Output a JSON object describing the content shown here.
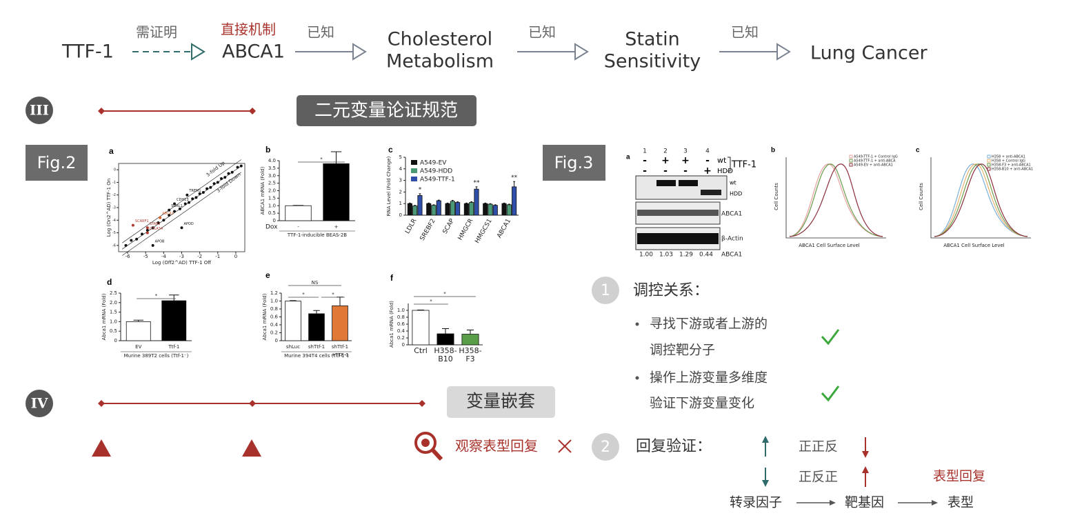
{
  "flow": {
    "nodes": [
      {
        "lines": [
          "TTF-1"
        ]
      },
      {
        "lines": [
          "ABCA1"
        ],
        "note": "直接机制"
      },
      {
        "lines": [
          "Cholesterol",
          "Metabolism"
        ]
      },
      {
        "lines": [
          "Statin",
          "Sensitivity"
        ]
      },
      {
        "lines": [
          "Lung Cancer"
        ]
      }
    ],
    "edges": [
      "需证明",
      "已知",
      "已知",
      "已知"
    ]
  },
  "section3": {
    "numeral": "III",
    "title": "二元变量论证规范"
  },
  "section4": {
    "numeral": "IV",
    "title": "变量嵌套",
    "phenotype": "观察表型回复"
  },
  "fig2": {
    "label": "Fig.2",
    "panels": [
      {
        "letter": "a",
        "type": "scatter",
        "xlabel": "Log (Off2^AD) TTF-1 Off",
        "ylabel": "Log (On2^AD) TTF-1 On",
        "xlim": [
          -6.5,
          0.5
        ],
        "ylim": [
          -6.5,
          0.5
        ],
        "xticks": [
          -6,
          -5,
          -4,
          -3,
          -2,
          -1,
          0
        ],
        "yticks": [
          -6,
          -5,
          -4,
          -3,
          -2,
          -1,
          0
        ],
        "color": "#111111",
        "fold": [
          "3-fold Up",
          "3-fold Down"
        ],
        "x": [
          -6.1,
          -5.8,
          -5.5,
          -5.2,
          -4.9,
          -4.6,
          -4.3,
          -4.0,
          -3.7,
          -3.4,
          -3.1,
          -2.8,
          -2.6,
          -2.4,
          -2.2,
          -2.0,
          -1.8,
          -1.6,
          -1.4,
          -1.2,
          -1.0,
          -0.8,
          -0.6,
          -0.4,
          -0.2,
          0.1,
          0.3
        ],
        "y": [
          -6.0,
          -5.6,
          -5.5,
          -5.1,
          -4.8,
          -4.6,
          -4.2,
          -4.0,
          -3.6,
          -3.3,
          -3.1,
          -2.7,
          -2.6,
          -2.3,
          -2.2,
          -1.9,
          -1.8,
          -1.5,
          -1.4,
          -1.1,
          -1.0,
          -0.7,
          -0.6,
          -0.3,
          -0.2,
          0.2,
          0.3
        ],
        "genes": [
          {
            "name": "SCARF1",
            "x": -5.7,
            "y": -4.4,
            "color": "#b03a2e"
          },
          {
            "name": "STAB2",
            "x": -4.9,
            "y": -4.6,
            "color": "#b03a2e"
          },
          {
            "name": "ABCA1",
            "x": -4.2,
            "y": -3.8,
            "color": "#d9622b"
          },
          {
            "name": "SORL1",
            "x": -3.7,
            "y": -3.2,
            "color": "#111111"
          },
          {
            "name": "CDH13",
            "x": -3.4,
            "y": -2.7,
            "color": "#111111"
          },
          {
            "name": "TREM1",
            "x": -2.7,
            "y": -2.0,
            "color": "#111111"
          },
          {
            "name": "CELA3A",
            "x": -4.9,
            "y": -5.0,
            "color": "#b03a2e"
          },
          {
            "name": "APOD",
            "x": -3.0,
            "y": -4.6,
            "color": "#111111"
          },
          {
            "name": "APOB",
            "x": -4.6,
            "y": -6.0,
            "color": "#111111"
          }
        ]
      },
      {
        "letter": "b",
        "type": "bar",
        "ylabel": "ABCA1 mRNA (Fold)",
        "ylim": [
          0,
          4.0
        ],
        "yticks": [
          0,
          0.5,
          {
            "value": 1,
            "label": "1.0"
          },
          1.5,
          {
            "value": 2,
            "label": "2.0"
          },
          2.5,
          {
            "value": 3,
            "label": "3.0"
          },
          3.5,
          {
            "value": 4,
            "label": "4.0"
          }
        ],
        "rowLabel": "Dox",
        "categories": [
          [
            "-"
          ],
          [
            "+"
          ]
        ],
        "series": [
          {
            "colors": [
              "#ffffff",
              "#000000"
            ],
            "values": [
              1.0,
              3.8
            ],
            "errors": [
              0.02,
              0.8
            ]
          }
        ],
        "xlabel": "TTF-1-inducible BEAS-2B",
        "annotations": [
          "*"
        ]
      },
      {
        "letter": "c",
        "type": "bar",
        "ylabel": "RNA Level (Fold Change)",
        "ylim": [
          0,
          5
        ],
        "yticks": [
          0,
          1,
          2,
          3,
          4,
          5
        ],
        "categories": [
          [
            "LDLR"
          ],
          [
            "SREBF2"
          ],
          [
            "SCAP"
          ],
          [
            "HMGCR"
          ],
          [
            "HMGCS1"
          ],
          [
            "ABCA1"
          ]
        ],
        "series": [
          {
            "name": "A549-EV",
            "color": "#111111",
            "values": [
              1.0,
              1.0,
              1.0,
              1.0,
              1.0,
              1.0
            ],
            "errors": [
              0.05,
              0.05,
              0.05,
              0.05,
              0.05,
              0.05
            ]
          },
          {
            "name": "A549-HDD",
            "color": "#4a9a78",
            "values": [
              0.8,
              0.85,
              1.2,
              1.1,
              0.95,
              0.9
            ],
            "errors": [
              0.05,
              0.05,
              0.08,
              0.06,
              0.05,
              0.05
            ]
          },
          {
            "name": "A549-TTF-1",
            "color": "#2f4fa8",
            "values": [
              1.7,
              1.25,
              1.1,
              2.25,
              0.85,
              2.45
            ],
            "errors": [
              0.15,
              0.05,
              0.05,
              0.2,
              0.05,
              0.45
            ]
          }
        ],
        "annotations": [
          "*",
          "**",
          "**"
        ]
      },
      {
        "letter": "d",
        "type": "bar",
        "ylabel": "Abca1 mRNA (Fold)",
        "ylim": [
          0,
          2.5
        ],
        "yticks": [
          0,
          0.5,
          {
            "value": 1,
            "label": "1.0"
          },
          1.5,
          {
            "value": 2,
            "label": "2.0"
          },
          2.5
        ],
        "categories": [
          [
            "EV"
          ],
          [
            "Ttf-1"
          ]
        ],
        "series": [
          {
            "colors": [
              "#ffffff",
              "#000000"
            ],
            "values": [
              1.0,
              2.1
            ],
            "errors": [
              0.08,
              0.3
            ]
          }
        ],
        "xlabel": "Murine 389T2 cells (Ttf-1⁻)",
        "annotations": [
          "*"
        ]
      },
      {
        "letter": "e",
        "type": "bar",
        "ylabel": "Abca1 mRNA (Fold)",
        "ylim": [
          0,
          1.2
        ],
        "yticks": [
          0,
          0.2,
          0.4,
          0.6,
          0.8,
          {
            "value": 1,
            "label": "1.0"
          },
          1.2
        ],
        "categories": [
          [
            "shLuc"
          ],
          [
            "shTtf-1"
          ],
          [
            "shTtf-1",
            "+TTF-1"
          ]
        ],
        "series": [
          {
            "colors": [
              "#ffffff",
              "#000000",
              "#e07838"
            ],
            "values": [
              1.0,
              0.68,
              0.88
            ],
            "errors": [
              0.01,
              0.08,
              0.22
            ]
          }
        ],
        "xlabel": "Murine 394T4 cells (Ttf-1⁺)",
        "annotations": [
          "NS",
          "*",
          "*"
        ]
      },
      {
        "letter": "f",
        "type": "bar",
        "ylabel": "Abca1 mRNA (Fold)",
        "ylim": [
          0,
          1.2
        ],
        "yticks": [
          0,
          0.2,
          0.4,
          0.6,
          0.8,
          {
            "value": 1,
            "label": "1.0"
          }
        ],
        "categories": [
          [
            "Ctrl"
          ],
          [
            "H358-",
            "B10"
          ],
          [
            "H358-",
            "F3"
          ]
        ],
        "series": [
          {
            "colors": [
              "#ffffff",
              "#000000",
              "#5a9e4a"
            ],
            "values": [
              1.0,
              0.32,
              0.31
            ],
            "errors": [
              0.01,
              0.15,
              0.12
            ]
          }
        ],
        "annotations": [
          "*",
          "*"
        ]
      }
    ]
  },
  "fig3": {
    "label": "Fig.3",
    "blot": {
      "letter": "a",
      "lanes": [
        "1",
        "2",
        "3",
        "4"
      ],
      "wt": [
        "-",
        "+",
        "+",
        "-"
      ],
      "hdd": [
        "-",
        "-",
        "-",
        "+"
      ],
      "wtLabel": "wt",
      "hddLabel": "HDD",
      "protein": "TTF-1",
      "bandLabels": [
        "wt",
        "HDD"
      ],
      "rows": [
        "ABCA1",
        "β-Actin"
      ],
      "quant": [
        "1.00",
        "1.03",
        "1.29",
        "0.44"
      ],
      "quantLabel": "ABCA1"
    },
    "flow": [
      {
        "letter": "b",
        "ylabel": "Cell Counts",
        "xlabel": "ABCA1 Cell Surface Level",
        "legend": [
          "A549-TTF-1 + Control IgG",
          "A549-TTF-1 + anti-ABCA",
          "A549-EV + anti-ABCA1"
        ]
      },
      {
        "letter": "c",
        "ylabel": "Cell Counts",
        "xlabel": "ABCA1 Cell Surface Level",
        "legend": [
          "H358 + anti-ABCA1",
          "H358 + Control IgG",
          "H358-F3 + anti-ABCA1",
          "H358-B10 + anti-ABCA1"
        ]
      }
    ]
  },
  "right": {
    "item1": {
      "number": "1",
      "title": "调控关系：",
      "bullets": [
        [
          "寻找下游或者上游的",
          "调控靶分子"
        ],
        [
          "操作上游变量多维度",
          "验证下游变量变化"
        ]
      ]
    },
    "item2": {
      "number": "2",
      "title": "回复验证：",
      "rows": [
        "正正反",
        "正反正"
      ],
      "outcome": "表型回复",
      "chain": [
        "转录因子",
        "靶基因",
        "表型"
      ]
    }
  }
}
